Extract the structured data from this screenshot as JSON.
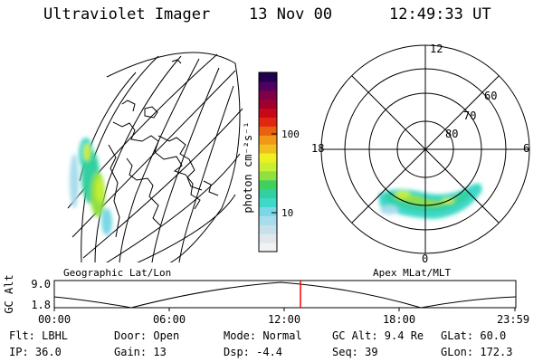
{
  "header": {
    "title": "Ultraviolet Imager",
    "date": "13 Nov 00",
    "time": "12:49:33 UT"
  },
  "colorbar": {
    "unit": "photon cm⁻²s⁻¹",
    "tick_100": "100",
    "tick_10": "10",
    "scale": "log",
    "colors": [
      "#f2f2f2",
      "#e0e8ee",
      "#c8e0ea",
      "#a8dcec",
      "#7ad8e6",
      "#40d8c8",
      "#30d0a0",
      "#40d060",
      "#90e040",
      "#c8f030",
      "#f0f020",
      "#f0c020",
      "#f09818",
      "#e86010",
      "#e02810",
      "#c80818",
      "#a00030",
      "#800048",
      "#500060",
      "#200050"
    ]
  },
  "geo_panel": {
    "label": "Geographic Lat/Lon"
  },
  "polar_panel": {
    "label": "Apex MLat/MLT",
    "mlt_12": "12",
    "mlt_18": "18",
    "mlt_6": "6",
    "mlt_0": "0",
    "lat_60": "60",
    "lat_70": "70",
    "lat_80": "80"
  },
  "altitude_plot": {
    "axis_label": "GC Alt",
    "y_max": "9.0",
    "y_min": "1.8",
    "x_ticks": [
      "00:00",
      "06:00",
      "12:00",
      "18:00",
      "23:59"
    ],
    "current_time_marker_color": "#ff0000"
  },
  "info": {
    "flt": "Flt: LBHL",
    "ip": "IP: 36.0",
    "door": "Door: Open",
    "gain": "Gain: 13",
    "mode": "Mode: Normal",
    "dsp": "Dsp:   -4.4",
    "gc_alt": "GC Alt: 9.4 Re",
    "seq": "Seq: 39",
    "glat": "GLat:  60.0",
    "glon": "GLon: 172.3"
  }
}
